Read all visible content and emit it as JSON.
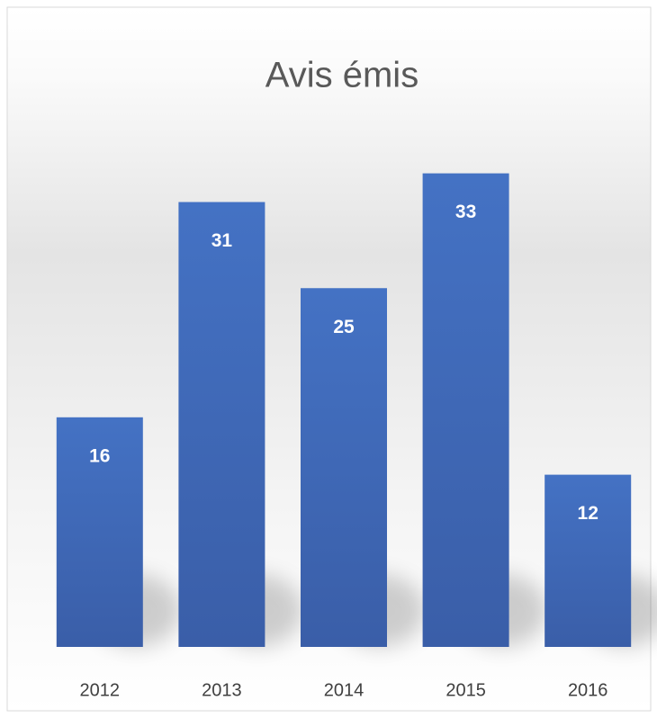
{
  "chart_data": {
    "type": "bar",
    "title": "Avis émis",
    "categories": [
      "2012",
      "2013",
      "2014",
      "2015",
      "2016"
    ],
    "values": [
      16,
      31,
      25,
      33,
      12
    ],
    "color": "#4472c4"
  }
}
